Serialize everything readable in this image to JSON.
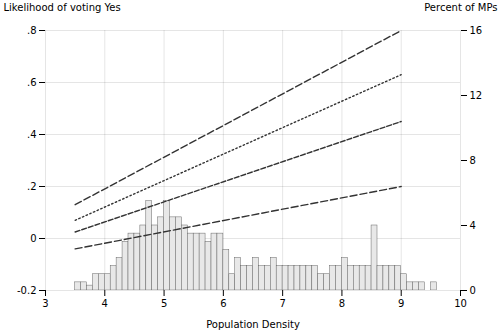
{
  "chart_data": {
    "type": "histogram",
    "xlabel": "Population Density",
    "ylabel": "Likelihood of voting Yes",
    "y2label": "Percent of MPs",
    "xlim": [
      3,
      10
    ],
    "xticks": [
      3,
      4,
      5,
      6,
      7,
      8,
      9,
      10
    ],
    "ylim": [
      -0.2,
      0.8
    ],
    "yticks": [
      -0.2,
      0,
      {
        "value": 0.2,
        "label": ".2"
      },
      {
        "value": 0.4,
        "label": ".4"
      },
      {
        "value": 0.6,
        "label": ".6"
      },
      {
        "value": 0.8,
        "label": ".8"
      }
    ],
    "y2lim": [
      0,
      16
    ],
    "y2ticks": [
      0,
      4,
      8,
      12,
      16
    ],
    "grid": true,
    "series": [
      {
        "type": "bar",
        "axis": "y2",
        "color": "#e8e8e8",
        "bins": [
          3.5,
          3.6,
          3.7,
          3.8,
          3.9,
          4.0,
          4.1,
          4.2,
          4.3,
          4.4,
          4.5,
          4.6,
          4.7,
          4.8,
          4.9,
          5.0,
          5.1,
          5.2,
          5.3,
          5.4,
          5.5,
          5.6,
          5.7,
          5.8,
          5.9,
          6.0,
          6.1,
          6.2,
          6.3,
          6.4,
          6.5,
          6.6,
          6.7,
          6.8,
          6.9,
          7.0,
          7.1,
          7.2,
          7.3,
          7.4,
          7.5,
          7.6,
          7.7,
          7.8,
          7.9,
          8.0,
          8.1,
          8.2,
          8.3,
          8.4,
          8.5,
          8.6,
          8.7,
          8.8,
          8.9,
          9.0,
          9.1,
          9.2,
          9.3,
          9.4,
          9.5,
          9.6
        ],
        "values": [
          0.5,
          0.5,
          0.3,
          1.0,
          1.0,
          1.0,
          1.5,
          2.0,
          3.0,
          3.5,
          3.5,
          4.0,
          5.5,
          4.0,
          4.5,
          5.5,
          4.5,
          4.5,
          4.0,
          3.5,
          3.5,
          3.5,
          3.0,
          3.5,
          3.5,
          2.5,
          1.0,
          2.0,
          1.5,
          1.5,
          2.0,
          1.5,
          1.5,
          2.0,
          1.5,
          1.5,
          1.5,
          1.5,
          1.5,
          1.5,
          1.5,
          1.0,
          1.0,
          1.5,
          1.5,
          2.0,
          1.5,
          1.5,
          1.5,
          1.5,
          4.0,
          1.5,
          1.5,
          1.5,
          1.5,
          1.0,
          0.5,
          0.5,
          0.5,
          0.0,
          0.5
        ]
      },
      {
        "type": "line",
        "color": "#333333",
        "line_style": "dashed",
        "x": [
          3.5,
          9.0
        ],
        "values": [
          0.13,
          0.8
        ]
      },
      {
        "type": "line",
        "color": "#333333",
        "line_style": "dotted",
        "x": [
          3.5,
          9.0
        ],
        "values": [
          0.07,
          0.63
        ]
      },
      {
        "type": "line",
        "color": "#333333",
        "line_style": "short_dashed",
        "x": [
          3.5,
          9.0
        ],
        "values": [
          0.025,
          0.45
        ]
      },
      {
        "type": "line",
        "color": "#333333",
        "line_style": "dashed",
        "x": [
          3.5,
          9.0
        ],
        "values": [
          -0.04,
          0.2
        ]
      }
    ]
  }
}
